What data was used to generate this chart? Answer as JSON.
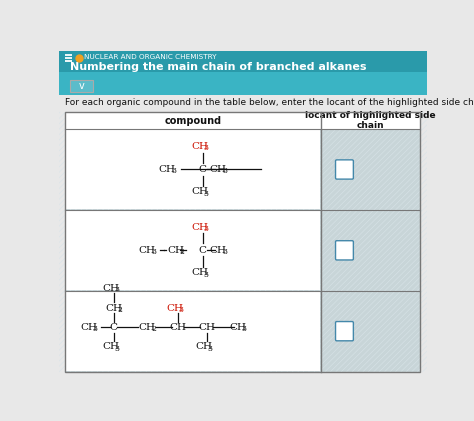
{
  "title_subject": "NUCLEAR AND ORGANIC CHEMISTRY",
  "title_main": "Numbering the main chain of branched alkanes",
  "instruction": "For each organic compound in the table below, enter the locant of the highlighted side chain.",
  "col1_header": "compound",
  "col2_header": "locant of highlighted side\nchain",
  "header_bg": "#3ab4c4",
  "header_bg2": "#2a9aaa",
  "table_bg": "#c8d5d8",
  "table_border": "#888888",
  "highlight_color": "#cc1100",
  "black_color": "#111111",
  "white_color": "#ffffff",
  "dropdown_bg": "#5bbcca",
  "fig_bg": "#e8e8e8"
}
